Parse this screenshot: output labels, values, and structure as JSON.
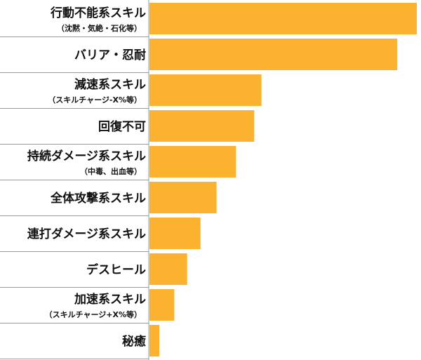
{
  "chart_data": {
    "type": "bar",
    "orientation": "horizontal",
    "title": "",
    "xlabel": "",
    "ylabel": "",
    "bar_color": "#FBB22F",
    "divider_color": "#9A9A9A",
    "xlim": [
      0,
      100
    ],
    "categories": [
      {
        "label": "行動不能系スキル",
        "sub": "（沈黙・気絶・石化等）",
        "value": 100
      },
      {
        "label": "バリア・忍耐",
        "sub": "",
        "value": 92.7
      },
      {
        "label": "減速系スキル",
        "sub": "（スキルチャージ-X%等）",
        "value": 41.9
      },
      {
        "label": "回復不可",
        "sub": "",
        "value": 39.2
      },
      {
        "label": "持続ダメージ系スキル",
        "sub": "（中毒、出血等）",
        "value": 32.4
      },
      {
        "label": "全体攻撃系スキル",
        "sub": "",
        "value": 25.1
      },
      {
        "label": "連打ダメージ系スキル",
        "sub": "",
        "value": 19.1
      },
      {
        "label": "デスヒール",
        "sub": "",
        "value": 14.1
      },
      {
        "label": "加速系スキル",
        "sub": "（スキルチャージ+X%等）",
        "value": 9.3
      },
      {
        "label": "秘癒",
        "sub": "",
        "value": 3.7
      }
    ]
  }
}
